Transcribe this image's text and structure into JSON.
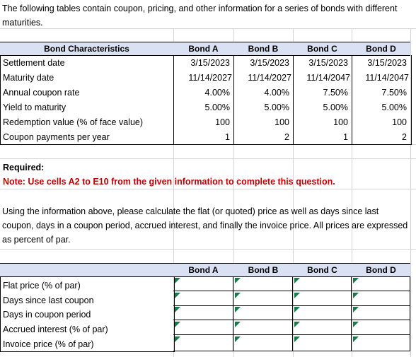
{
  "intro": "The following tables contain coupon, pricing, and other information for a series of bonds with different maturities.",
  "table1": {
    "header_label": "Bond Characteristics",
    "bonds": [
      "Bond A",
      "Bond B",
      "Bond C",
      "Bond D"
    ],
    "rows": [
      {
        "label": "Settlement date",
        "values": [
          "3/15/2023",
          "3/15/2023",
          "3/15/2023",
          "3/15/2023"
        ]
      },
      {
        "label": "Maturity date",
        "values": [
          "11/14/2027",
          "11/14/2027",
          "11/14/2047",
          "11/14/2047"
        ]
      },
      {
        "label": "Annual coupon rate",
        "values": [
          "4.00%",
          "4.00%",
          "7.50%",
          "7.50%"
        ]
      },
      {
        "label": "Yield to maturity",
        "values": [
          "5.00%",
          "5.00%",
          "5.00%",
          "5.00%"
        ]
      },
      {
        "label": "Redemption value (% of face value)",
        "values": [
          "100",
          "100",
          "100",
          "100"
        ]
      },
      {
        "label": "Coupon payments per year",
        "values": [
          "1",
          "2",
          "1",
          "2"
        ]
      }
    ]
  },
  "required": "Required:",
  "note": "Note: Use cells A2 to E10 from the given information to complete this question.",
  "instructions": "Using the information above, please calculate the flat (or quoted) price as well as days since last coupon, days in a coupon period, accrued interest, and finally the invoice price. All prices are expressed as percent of par.",
  "table2": {
    "bonds": [
      "Bond A",
      "Bond B",
      "Bond C",
      "Bond D"
    ],
    "rows": [
      {
        "label": "Flat price (% of par)"
      },
      {
        "label": "Days since last coupon"
      },
      {
        "label": "Days in coupon period"
      },
      {
        "label": "Accrued interest (% of par)"
      },
      {
        "label": "Invoice price (% of par)"
      }
    ]
  }
}
